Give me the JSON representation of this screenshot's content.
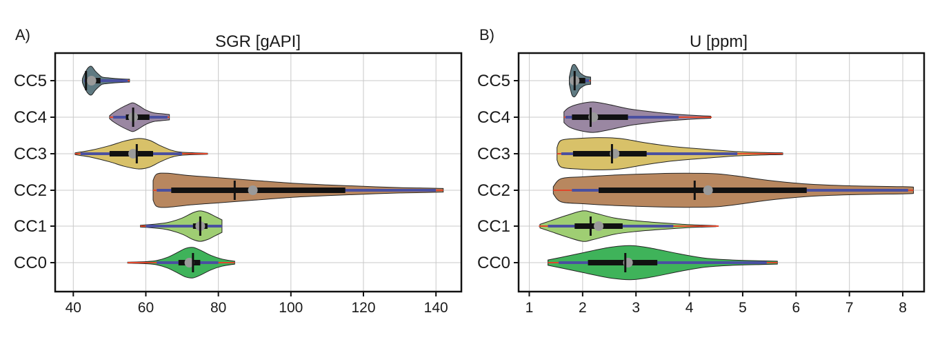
{
  "chart_data": [
    {
      "type": "violin",
      "panel_label": "A)",
      "title": "SGR [gAPI]",
      "xlabel": "",
      "ylabel": "",
      "xlim": [
        35,
        147
      ],
      "xticks": [
        40,
        60,
        80,
        100,
        120,
        140
      ],
      "categories": [
        "CC5",
        "CC4",
        "CC3",
        "CC2",
        "CC1",
        "CC0"
      ],
      "grid": true,
      "series": [
        {
          "name": "CC5",
          "color": "#5f7a82",
          "density": [
            [
              42.5,
              0.1
            ],
            [
              43,
              0.35
            ],
            [
              44,
              0.7
            ],
            [
              45,
              0.8
            ],
            [
              46,
              0.55
            ],
            [
              47,
              0.35
            ],
            [
              48,
              0.2
            ],
            [
              50,
              0.15
            ],
            [
              53,
              0.1
            ],
            [
              55.5,
              0.08
            ]
          ],
          "whisker_outer": [
            43,
            55.5
          ],
          "whisker_inner": [
            43,
            55
          ],
          "iqr": [
            43.5,
            47.5
          ],
          "median": 43.5,
          "mean": 45
        },
        {
          "name": "CC4",
          "color": "#9a87a2",
          "density": [
            [
              50,
              0.08
            ],
            [
              51,
              0.25
            ],
            [
              53,
              0.5
            ],
            [
              55,
              0.7
            ],
            [
              56.5,
              0.8
            ],
            [
              58,
              0.65
            ],
            [
              60,
              0.4
            ],
            [
              62,
              0.25
            ],
            [
              64,
              0.2
            ],
            [
              66.5,
              0.15
            ]
          ],
          "whisker_outer": [
            50,
            66.5
          ],
          "whisker_inner": [
            51,
            66
          ],
          "iqr": [
            54.5,
            61
          ],
          "median": 56.5,
          "mean": 56.5
        },
        {
          "name": "CC3",
          "color": "#d8c169",
          "density": [
            [
              40.5,
              0.05
            ],
            [
              42,
              0.1
            ],
            [
              45,
              0.2
            ],
            [
              50,
              0.45
            ],
            [
              54,
              0.7
            ],
            [
              58,
              0.85
            ],
            [
              61,
              0.75
            ],
            [
              64,
              0.45
            ],
            [
              67,
              0.2
            ],
            [
              70,
              0.08
            ],
            [
              77,
              0.03
            ]
          ],
          "whisker_outer": [
            40.5,
            77
          ],
          "whisker_inner": [
            42,
            70
          ],
          "iqr": [
            50,
            62
          ],
          "median": 57.5,
          "mean": 56.5
        },
        {
          "name": "CC2",
          "color": "#b8875f",
          "density": [
            [
              62,
              0.55
            ],
            [
              63,
              0.9
            ],
            [
              66,
              0.95
            ],
            [
              72,
              0.82
            ],
            [
              80,
              0.7
            ],
            [
              90,
              0.55
            ],
            [
              100,
              0.4
            ],
            [
              110,
              0.3
            ],
            [
              120,
              0.22
            ],
            [
              130,
              0.15
            ],
            [
              138,
              0.12
            ],
            [
              142,
              0.1
            ]
          ],
          "whisker_outer": [
            62,
            142
          ],
          "whisker_inner": [
            63,
            140
          ],
          "iqr": [
            67,
            115
          ],
          "median": 84.5,
          "mean": 89.5
        },
        {
          "name": "CC1",
          "color": "#9fce73",
          "density": [
            [
              58.5,
              0.05
            ],
            [
              62,
              0.1
            ],
            [
              66,
              0.2
            ],
            [
              70,
              0.45
            ],
            [
              73,
              0.75
            ],
            [
              75,
              0.85
            ],
            [
              77,
              0.75
            ],
            [
              79,
              0.55
            ],
            [
              81,
              0.35
            ]
          ],
          "whisker_outer": [
            58.5,
            81
          ],
          "whisker_inner": [
            60,
            81
          ],
          "iqr": [
            73,
            77
          ],
          "median": 75,
          "mean": 75
        },
        {
          "name": "CC0",
          "color": "#3fb35a",
          "density": [
            [
              55,
              0.03
            ],
            [
              60,
              0.06
            ],
            [
              63,
              0.12
            ],
            [
              66,
              0.3
            ],
            [
              69,
              0.6
            ],
            [
              71,
              0.8
            ],
            [
              73,
              0.85
            ],
            [
              75,
              0.7
            ],
            [
              78,
              0.4
            ],
            [
              81,
              0.2
            ],
            [
              84.5,
              0.08
            ]
          ],
          "whisker_outer": [
            55,
            84.5
          ],
          "whisker_inner": [
            63,
            80
          ],
          "iqr": [
            69,
            75
          ],
          "median": 73,
          "mean": 72
        }
      ]
    },
    {
      "type": "violin",
      "panel_label": "B)",
      "title": "U [ppm]",
      "xlabel": "",
      "ylabel": "",
      "xlim": [
        0.8,
        8.4
      ],
      "xticks": [
        1,
        2,
        3,
        4,
        5,
        6,
        7,
        8
      ],
      "categories": [
        "CC5",
        "CC4",
        "CC3",
        "CC2",
        "CC1",
        "CC0"
      ],
      "grid": true,
      "series": [
        {
          "name": "CC5",
          "color": "#5f7a82",
          "density": [
            [
              1.75,
              0.2
            ],
            [
              1.8,
              0.8
            ],
            [
              1.85,
              0.9
            ],
            [
              1.9,
              0.7
            ],
            [
              1.95,
              0.45
            ],
            [
              2.05,
              0.25
            ],
            [
              2.15,
              0.2
            ]
          ],
          "whisker_outer": [
            1.78,
            2.15
          ],
          "whisker_inner": [
            1.8,
            2.12
          ],
          "iqr": [
            1.82,
            2.05
          ],
          "median": 1.85,
          "mean": 1.85
        },
        {
          "name": "CC4",
          "color": "#9a87a2",
          "density": [
            [
              1.65,
              0.3
            ],
            [
              1.75,
              0.55
            ],
            [
              1.95,
              0.75
            ],
            [
              2.2,
              0.85
            ],
            [
              2.5,
              0.7
            ],
            [
              2.9,
              0.45
            ],
            [
              3.3,
              0.3
            ],
            [
              3.7,
              0.18
            ],
            [
              4.1,
              0.1
            ],
            [
              4.4,
              0.06
            ]
          ],
          "whisker_outer": [
            1.65,
            4.42
          ],
          "whisker_inner": [
            1.68,
            3.8
          ],
          "iqr": [
            1.8,
            2.85
          ],
          "median": 2.15,
          "mean": 2.2
        },
        {
          "name": "CC3",
          "color": "#d8c169",
          "density": [
            [
              1.52,
              0.35
            ],
            [
              1.6,
              0.75
            ],
            [
              1.9,
              0.85
            ],
            [
              2.3,
              0.9
            ],
            [
              2.7,
              0.85
            ],
            [
              3.2,
              0.6
            ],
            [
              3.7,
              0.4
            ],
            [
              4.3,
              0.25
            ],
            [
              4.9,
              0.12
            ],
            [
              5.5,
              0.06
            ],
            [
              5.75,
              0.05
            ]
          ],
          "whisker_outer": [
            1.52,
            5.75
          ],
          "whisker_inner": [
            1.6,
            4.9
          ],
          "iqr": [
            1.82,
            3.2
          ],
          "median": 2.55,
          "mean": 2.6
        },
        {
          "name": "CC2",
          "color": "#b8875f",
          "density": [
            [
              1.45,
              0.2
            ],
            [
              1.6,
              0.65
            ],
            [
              2.0,
              0.75
            ],
            [
              2.6,
              0.85
            ],
            [
              3.4,
              0.93
            ],
            [
              4.0,
              0.95
            ],
            [
              4.6,
              0.9
            ],
            [
              5.5,
              0.55
            ],
            [
              6.2,
              0.35
            ],
            [
              7.0,
              0.25
            ],
            [
              8.0,
              0.2
            ],
            [
              8.2,
              0.18
            ]
          ],
          "whisker_outer": [
            1.45,
            8.2
          ],
          "whisker_inner": [
            1.8,
            8.1
          ],
          "iqr": [
            2.3,
            6.2
          ],
          "median": 4.1,
          "mean": 4.35
        },
        {
          "name": "CC1",
          "color": "#9fce73",
          "density": [
            [
              1.2,
              0.1
            ],
            [
              1.4,
              0.3
            ],
            [
              1.7,
              0.6
            ],
            [
              2.0,
              0.85
            ],
            [
              2.2,
              0.75
            ],
            [
              2.6,
              0.45
            ],
            [
              3.0,
              0.3
            ],
            [
              3.5,
              0.18
            ],
            [
              4.0,
              0.08
            ],
            [
              4.5,
              0.03
            ]
          ],
          "whisker_outer": [
            1.18,
            4.55
          ],
          "whisker_inner": [
            1.35,
            3.7
          ],
          "iqr": [
            1.85,
            2.75
          ],
          "median": 2.15,
          "mean": 2.3
        },
        {
          "name": "CC0",
          "color": "#3fb35a",
          "density": [
            [
              1.35,
              0.15
            ],
            [
              1.6,
              0.3
            ],
            [
              2.0,
              0.55
            ],
            [
              2.5,
              0.85
            ],
            [
              2.9,
              0.95
            ],
            [
              3.3,
              0.8
            ],
            [
              3.8,
              0.5
            ],
            [
              4.3,
              0.25
            ],
            [
              4.8,
              0.15
            ],
            [
              5.4,
              0.1
            ],
            [
              5.65,
              0.08
            ]
          ],
          "whisker_outer": [
            1.35,
            5.65
          ],
          "whisker_inner": [
            1.55,
            5.45
          ],
          "iqr": [
            2.1,
            3.4
          ],
          "median": 2.8,
          "mean": 2.85
        }
      ]
    }
  ],
  "colors": {
    "whisker_outer": "#e0462a",
    "whisker_inner": "#4a50a0",
    "iqr_box": "#111111",
    "median_line": "#111111",
    "mean_dot": "#9a9a9a"
  }
}
